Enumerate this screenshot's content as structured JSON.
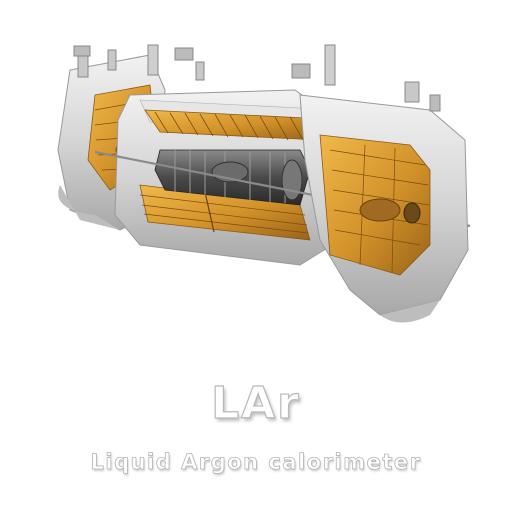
{
  "caption": {
    "title": "LAr",
    "subtitle": "Liquid Argon calorimeter"
  },
  "colors": {
    "background": "#ffffff",
    "cryostat": "#d6d6d6",
    "cryostat_shadow": "#a9a9a9",
    "calorimeter_module": "#d99a2b",
    "calorimeter_module_dark": "#9c6418",
    "inner_detector": "#5a5a5a",
    "text_outline": "#b9b9b9"
  },
  "icons": [
    "lar-calorimeter-cutaway-illustration"
  ]
}
